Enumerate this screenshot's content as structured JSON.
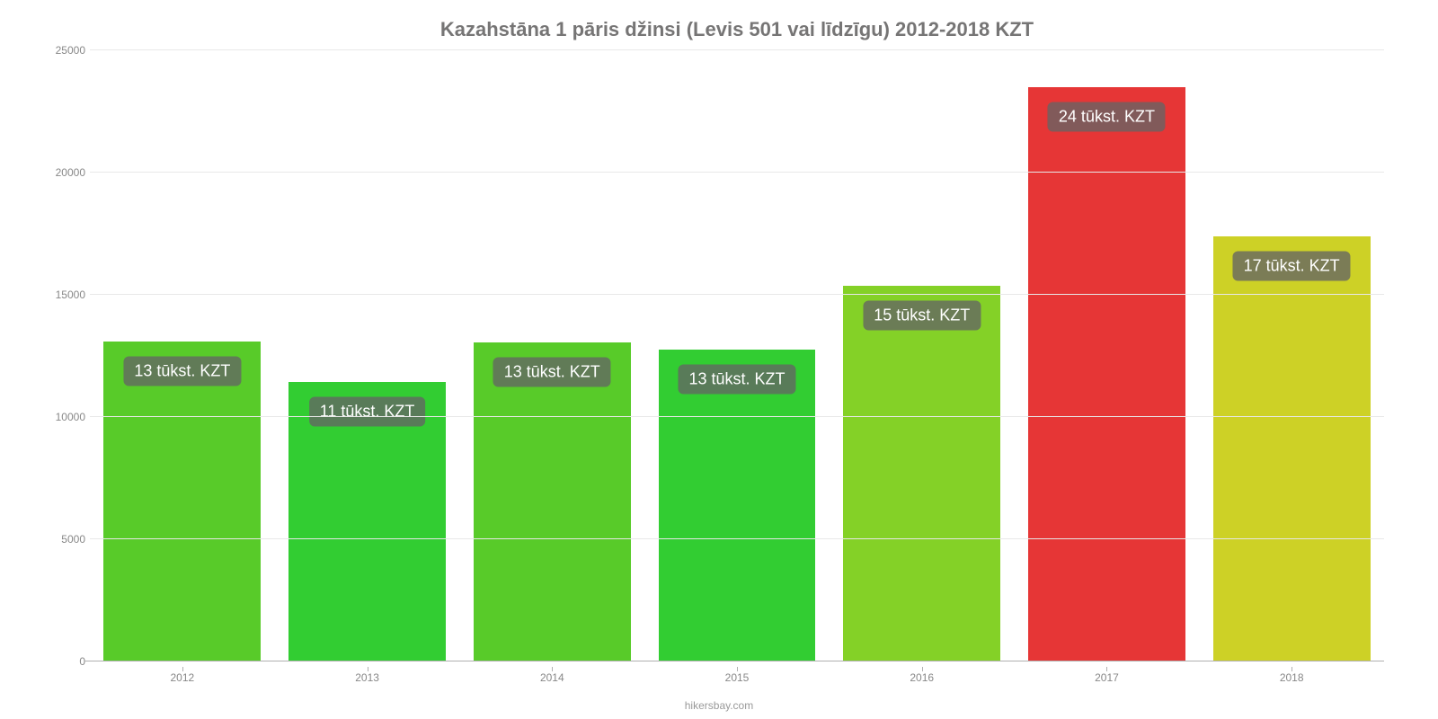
{
  "chart": {
    "type": "bar",
    "title": "Kazahstāna 1 pāris džinsi (Levis 501 vai līdzīgu) 2012-2018 KZT",
    "title_fontsize": 22,
    "title_color": "#767575",
    "background_color": "#ffffff",
    "grid_color": "#e8e8e8",
    "axis_color": "#b0b0b0",
    "tick_label_color": "#888888",
    "tick_fontsize": 12,
    "ylim": [
      0,
      25000
    ],
    "ytick_step": 5000,
    "yticks": [
      0,
      5000,
      10000,
      15000,
      20000,
      25000
    ],
    "categories": [
      "2012",
      "2013",
      "2014",
      "2015",
      "2016",
      "2017",
      "2018"
    ],
    "values": [
      13100,
      11450,
      13050,
      12750,
      15350,
      23500,
      17400
    ],
    "bar_colors": [
      "#58cb29",
      "#32cd32",
      "#58cb29",
      "#32cd32",
      "#84d127",
      "#e63636",
      "#cdd126"
    ],
    "bar_labels": [
      "13 tūkst. KZT",
      "11 tūkst. KZT",
      "13 tūkst. KZT",
      "13 tūkst. KZT",
      "15 tūkst. KZT",
      "24 tūkst. KZT",
      "17 tūkst. KZT"
    ],
    "bar_label_fontsize": 18,
    "bar_label_bg": "rgba(100,100,100,0.78)",
    "bar_label_color": "#ffffff",
    "bar_width": 0.85,
    "credit": "hikersbay.com"
  }
}
